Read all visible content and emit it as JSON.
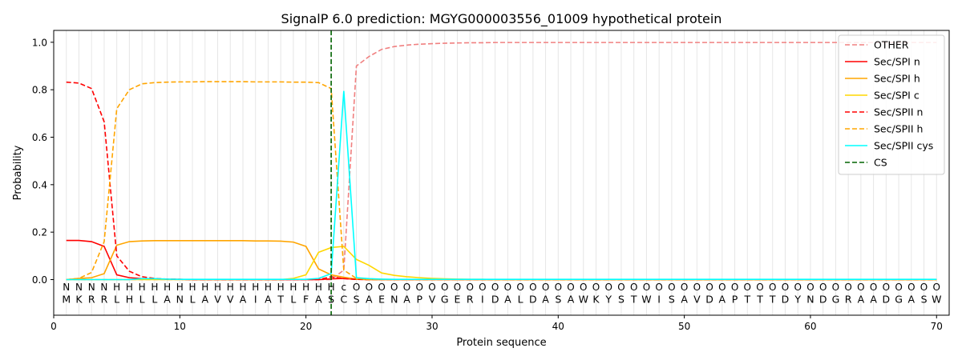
{
  "chart_data": {
    "type": "line",
    "title": "SignalP 6.0 prediction: MGYG000003556_01009 hypothetical protein",
    "xlabel": "Protein sequence",
    "ylabel": "Probability",
    "xlim": [
      0,
      71
    ],
    "ylim": [
      -0.15,
      1.05
    ],
    "xticks": [
      0,
      10,
      20,
      30,
      40,
      50,
      60,
      70
    ],
    "yticks": [
      0.0,
      0.2,
      0.4,
      0.6,
      0.8,
      1.0
    ],
    "grid": "vertical lines at each residue",
    "legend_position": "top-right",
    "sequence": [
      "M",
      "K",
      "R",
      "R",
      "L",
      "H",
      "L",
      "L",
      "A",
      "N",
      "L",
      "A",
      "V",
      "V",
      "A",
      "I",
      "A",
      "T",
      "L",
      "F",
      "A",
      "S",
      "C",
      "S",
      "A",
      "E",
      "N",
      "A",
      "P",
      "V",
      "G",
      "E",
      "R",
      "I",
      "D",
      "A",
      "L",
      "D",
      "A",
      "S",
      "A",
      "W",
      "K",
      "Y",
      "S",
      "T",
      "W",
      "I",
      "S",
      "A",
      "V",
      "D",
      "A",
      "P",
      "T",
      "T",
      "T",
      "D",
      "Y",
      "N",
      "D",
      "G",
      "R",
      "A",
      "A",
      "D",
      "G",
      "A",
      "S",
      "W"
    ],
    "region_labels": [
      "N",
      "N",
      "N",
      "N",
      "H",
      "H",
      "H",
      "H",
      "H",
      "H",
      "H",
      "H",
      "H",
      "H",
      "H",
      "H",
      "H",
      "H",
      "H",
      "H",
      "H",
      "H",
      "c",
      "O",
      "O",
      "O",
      "O",
      "O",
      "O",
      "O",
      "O",
      "O",
      "O",
      "O",
      "O",
      "O",
      "O",
      "O",
      "O",
      "O",
      "O",
      "O",
      "O",
      "O",
      "O",
      "O",
      "O",
      "O",
      "O",
      "O",
      "O",
      "O",
      "O",
      "O",
      "O",
      "O",
      "O",
      "O",
      "O",
      "O",
      "O",
      "O",
      "O",
      "O",
      "O",
      "O",
      "O",
      "O",
      "O",
      "O"
    ],
    "region_label_colors": {
      "N": "#ff0000",
      "H": "#ffa500",
      "c": "#00ffff",
      "O": "#808080"
    },
    "cleavage_site_x": 22,
    "series": [
      {
        "name": "OTHER",
        "color": "#f08080",
        "dash": "dashed",
        "values": [
          0,
          0,
          0,
          0,
          0,
          0,
          0,
          0,
          0,
          0,
          0,
          0,
          0,
          0,
          0,
          0,
          0,
          0,
          0,
          0,
          0,
          0,
          0.04,
          0.9,
          0.94,
          0.97,
          0.982,
          0.988,
          0.992,
          0.994,
          0.996,
          0.997,
          0.998,
          0.998,
          0.999,
          0.999,
          0.999,
          0.999,
          0.999,
          0.999,
          0.999,
          0.999,
          0.999,
          0.999,
          0.999,
          0.999,
          0.999,
          0.999,
          0.999,
          0.999,
          0.999,
          0.999,
          0.999,
          0.999,
          0.999,
          0.999,
          0.999,
          0.999,
          0.999,
          0.999,
          0.999,
          0.999,
          0.999,
          0.999,
          0.999,
          0.999,
          0.999,
          0.999,
          0.999,
          0.999
        ]
      },
      {
        "name": "Sec/SPI n",
        "color": "#ff0000",
        "dash": "solid",
        "values": [
          0.165,
          0.165,
          0.16,
          0.14,
          0.02,
          0.008,
          0.004,
          0.002,
          0.001,
          0.001,
          0,
          0,
          0,
          0,
          0,
          0,
          0,
          0,
          0,
          0,
          0,
          0.003,
          0.005,
          0.001,
          0,
          0,
          0,
          0,
          0,
          0,
          0,
          0,
          0,
          0,
          0,
          0,
          0,
          0,
          0,
          0,
          0,
          0,
          0,
          0,
          0,
          0,
          0,
          0,
          0,
          0,
          0,
          0,
          0,
          0,
          0,
          0,
          0,
          0,
          0,
          0,
          0,
          0,
          0,
          0,
          0,
          0,
          0,
          0,
          0,
          0
        ]
      },
      {
        "name": "Sec/SPI h",
        "color": "#ffa500",
        "dash": "solid",
        "values": [
          0,
          0.005,
          0.008,
          0.025,
          0.145,
          0.16,
          0.163,
          0.164,
          0.164,
          0.164,
          0.164,
          0.164,
          0.164,
          0.164,
          0.164,
          0.163,
          0.163,
          0.162,
          0.158,
          0.14,
          0.045,
          0.02,
          0.01,
          0.002,
          0,
          0,
          0,
          0,
          0,
          0,
          0,
          0,
          0,
          0,
          0,
          0,
          0,
          0,
          0,
          0,
          0,
          0,
          0,
          0,
          0,
          0,
          0,
          0,
          0,
          0,
          0,
          0,
          0,
          0,
          0,
          0,
          0,
          0,
          0,
          0,
          0,
          0,
          0,
          0,
          0,
          0,
          0,
          0,
          0,
          0
        ]
      },
      {
        "name": "Sec/SPI c",
        "color": "#ffd700",
        "dash": "solid",
        "values": [
          0,
          0,
          0,
          0,
          0,
          0,
          0,
          0,
          0,
          0,
          0,
          0,
          0,
          0,
          0,
          0,
          0,
          0,
          0.005,
          0.02,
          0.115,
          0.135,
          0.14,
          0.085,
          0.06,
          0.028,
          0.018,
          0.012,
          0.008,
          0.005,
          0.003,
          0.002,
          0.001,
          0.001,
          0,
          0,
          0,
          0,
          0,
          0,
          0,
          0,
          0,
          0,
          0,
          0,
          0,
          0,
          0,
          0,
          0,
          0,
          0,
          0,
          0,
          0,
          0,
          0,
          0,
          0,
          0,
          0,
          0,
          0,
          0,
          0,
          0,
          0,
          0,
          0
        ]
      },
      {
        "name": "Sec/SPII n",
        "color": "#ff0000",
        "dash": "dashed",
        "values": [
          0.832,
          0.828,
          0.805,
          0.665,
          0.1,
          0.035,
          0.012,
          0.005,
          0.002,
          0.001,
          0,
          0,
          0,
          0,
          0,
          0,
          0,
          0,
          0,
          0,
          0,
          0.012,
          0.004,
          0.001,
          0,
          0,
          0,
          0,
          0,
          0,
          0,
          0,
          0,
          0,
          0,
          0,
          0,
          0,
          0,
          0,
          0,
          0,
          0,
          0,
          0,
          0,
          0,
          0,
          0,
          0,
          0,
          0,
          0,
          0,
          0,
          0,
          0,
          0,
          0,
          0,
          0,
          0,
          0,
          0,
          0,
          0,
          0,
          0,
          0,
          0
        ]
      },
      {
        "name": "Sec/SPII h",
        "color": "#ffa500",
        "dash": "dashed",
        "values": [
          0,
          0.005,
          0.03,
          0.16,
          0.72,
          0.8,
          0.825,
          0.83,
          0.832,
          0.833,
          0.833,
          0.834,
          0.834,
          0.834,
          0.834,
          0.833,
          0.833,
          0.833,
          0.832,
          0.832,
          0.83,
          0.805,
          0.04,
          0.005,
          0,
          0,
          0,
          0,
          0,
          0,
          0,
          0,
          0,
          0,
          0,
          0,
          0,
          0,
          0,
          0,
          0,
          0,
          0,
          0,
          0,
          0,
          0,
          0,
          0,
          0,
          0,
          0,
          0,
          0,
          0,
          0,
          0,
          0,
          0,
          0,
          0,
          0,
          0,
          0,
          0,
          0,
          0,
          0,
          0,
          0
        ]
      },
      {
        "name": "Sec/SPII cys",
        "color": "#00ffff",
        "dash": "solid",
        "values": [
          0,
          0,
          0,
          0,
          0,
          0,
          0.004,
          0.004,
          0.002,
          0.001,
          0.001,
          0.001,
          0.001,
          0.001,
          0.001,
          0.001,
          0.001,
          0.001,
          0.001,
          0.001,
          0.005,
          0.025,
          0.795,
          0.008,
          0.004,
          0.002,
          0.001,
          0.001,
          0.001,
          0.001,
          0.001,
          0.001,
          0.001,
          0.001,
          0.001,
          0.001,
          0.001,
          0.001,
          0.001,
          0.001,
          0.001,
          0.001,
          0.001,
          0.001,
          0.001,
          0.001,
          0.001,
          0.001,
          0.001,
          0.001,
          0.001,
          0.001,
          0.001,
          0.001,
          0.001,
          0.001,
          0.001,
          0.001,
          0.001,
          0.001,
          0.001,
          0.001,
          0.001,
          0.001,
          0.001,
          0.001,
          0.001,
          0.001,
          0.001,
          0.001
        ]
      }
    ],
    "cs_series": {
      "name": "CS",
      "color": "#006400",
      "dash": "dashed"
    }
  }
}
